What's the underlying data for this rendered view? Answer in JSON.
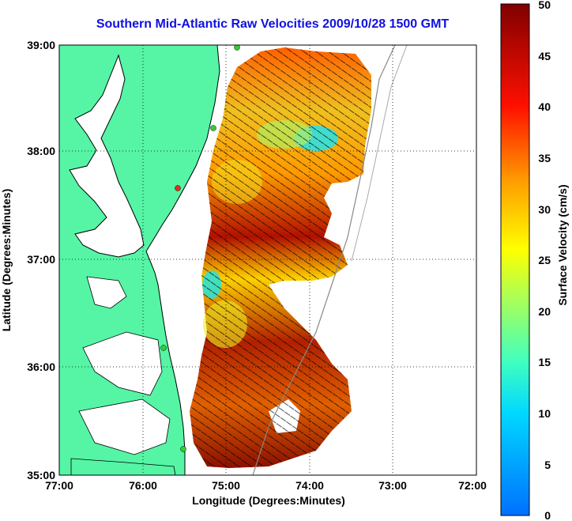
{
  "title": "Southern Mid-Atlantic Raw Velocities 2009/10/28 1500 GMT",
  "xlabel": "Longitude (Degrees:Minutes)",
  "ylabel": "Latitude (Degrees:Minutes)",
  "colorbar_label": "Surface Velocity (cm/s)",
  "xticks": [
    "77:00",
    "76:00",
    "75:00",
    "74:00",
    "73:00",
    "72:00"
  ],
  "yticks": [
    "39:00",
    "38:00",
    "37:00",
    "36:00",
    "35:00"
  ],
  "cbar_ticks": [
    "0",
    "5",
    "10",
    "15",
    "20",
    "25",
    "30",
    "35",
    "40",
    "45",
    "50"
  ],
  "colors": {
    "land": "#55f5a5",
    "title": "#1010e0",
    "coast": "#000000",
    "grid": "#000000"
  }
}
